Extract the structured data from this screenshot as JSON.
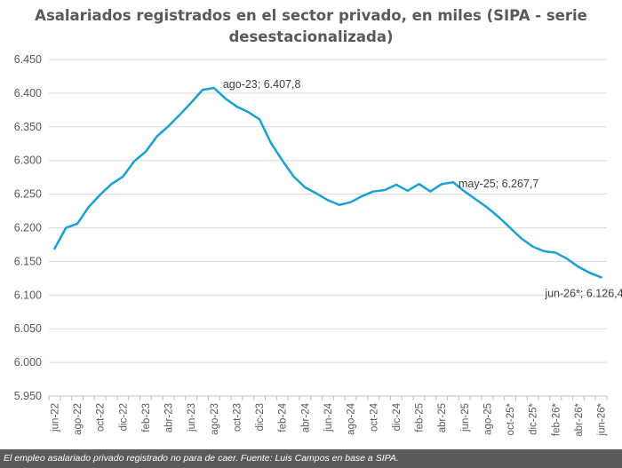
{
  "chart_data": {
    "type": "line",
    "title_line1": "Asalariados registrados en el sector privado, en miles (SIPA - serie",
    "title_line2": "desestacionalizada)",
    "xlabel": "",
    "ylabel": "",
    "ylim": [
      5950,
      6450
    ],
    "yticks": [
      {
        "value": 5950,
        "label": "5.950"
      },
      {
        "value": 6000,
        "label": "6.000"
      },
      {
        "value": 6050,
        "label": "6.050"
      },
      {
        "value": 6100,
        "label": "6.100"
      },
      {
        "value": 6150,
        "label": "6.150"
      },
      {
        "value": 6200,
        "label": "6.200"
      },
      {
        "value": 6250,
        "label": "6.250"
      },
      {
        "value": 6300,
        "label": "6.300"
      },
      {
        "value": 6350,
        "label": "6.350"
      },
      {
        "value": 6400,
        "label": "6.400"
      },
      {
        "value": 6450,
        "label": "6.450"
      }
    ],
    "grid": true,
    "line_color": "#1a9fd6",
    "x": [
      "jun-22",
      "jul-22",
      "ago-22",
      "sep-22",
      "oct-22",
      "nov-22",
      "dic-22",
      "ene-23",
      "feb-23",
      "mar-23",
      "abr-23",
      "may-23",
      "jun-23",
      "jul-23",
      "ago-23",
      "sep-23",
      "oct-23",
      "nov-23",
      "dic-23",
      "ene-24",
      "feb-24",
      "mar-24",
      "abr-24",
      "may-24",
      "jun-24",
      "jul-24",
      "ago-24",
      "sep-24",
      "oct-24",
      "nov-24",
      "dic-24",
      "ene-25",
      "feb-25",
      "mar-25",
      "abr-25",
      "may-25",
      "jun-25",
      "jul-25",
      "ago-25",
      "sep-25",
      "oct-25*",
      "nov-25*",
      "dic-25*",
      "ene-26*",
      "feb-26*",
      "mar-26*",
      "abr-26*",
      "may-26*",
      "jun-26*"
    ],
    "tick_labels": [
      "jun-22",
      "ago-22",
      "oct-22",
      "dic-22",
      "feb-23",
      "abr-23",
      "jun-23",
      "ago-23",
      "oct-23",
      "dic-23",
      "feb-24",
      "abr-24",
      "jun-24",
      "ago-24",
      "oct-24",
      "dic-24",
      "feb-25",
      "abr-25",
      "jun-25",
      "ago-25",
      "oct-25*",
      "dic-25*",
      "feb-26*",
      "abr-26*",
      "jun-26*"
    ],
    "series": [
      {
        "values": [
          6169,
          6200,
          6206,
          6231,
          6249,
          6265,
          6276,
          6299,
          6313,
          6336,
          6351,
          6368,
          6386,
          6405,
          6407.8,
          6392,
          6380,
          6372,
          6361,
          6326,
          6300,
          6276,
          6260,
          6251,
          6241,
          6234,
          6238,
          6247,
          6254,
          6256,
          6264,
          6255,
          6265,
          6254,
          6265,
          6267.7,
          6254,
          6242,
          6230,
          6216,
          6200,
          6184,
          6172,
          6165,
          6163,
          6154,
          6142,
          6133,
          6126.4
        ]
      }
    ],
    "annotations": [
      {
        "x": "ago-23",
        "text": "ago-23; 6.407,8"
      },
      {
        "x": "may-25",
        "text": "may-25; 6.267,7"
      },
      {
        "x": "jun-26*",
        "text": "jun-26*; 6.126,4"
      }
    ]
  },
  "caption": "El empleo asalariado privado registrado no para de caer. Fuente: Luis Campos en base a SIPA."
}
